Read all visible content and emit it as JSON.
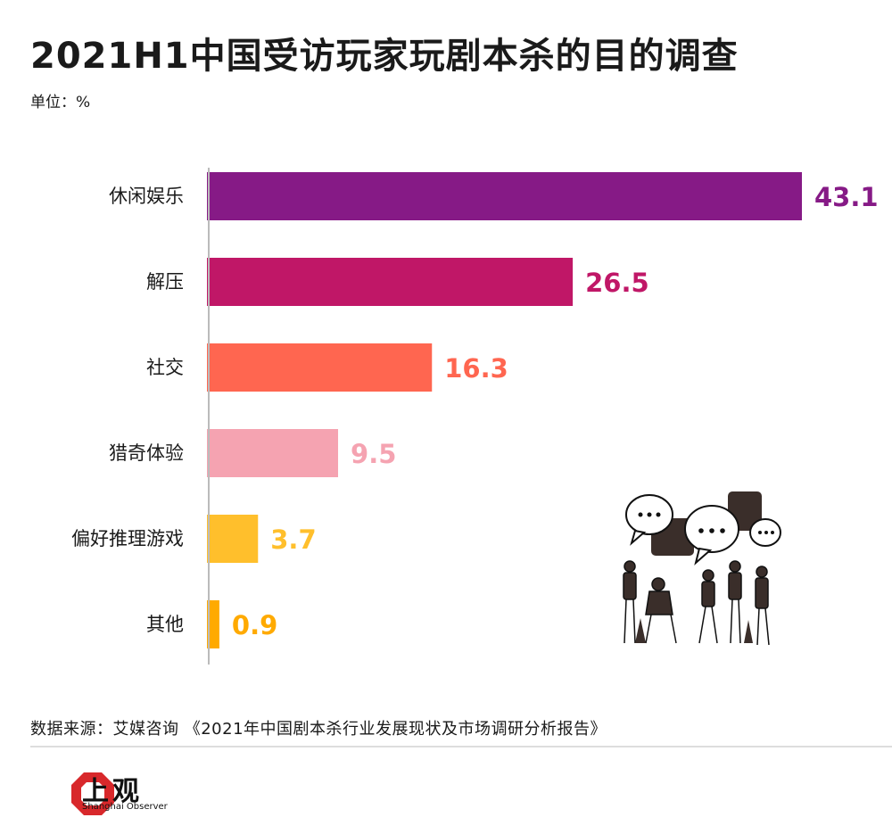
{
  "header": {
    "title": "2021H1中国受访玩家玩剧本杀的目的调查",
    "unit": "单位：%"
  },
  "chart_data": {
    "type": "bar",
    "orientation": "horizontal",
    "title": "2021H1中国受访玩家玩剧本杀的目的调查",
    "categories": [
      "休闲娱乐",
      "解压",
      "社交",
      "猎奇体验",
      "偏好推理游戏",
      "其他"
    ],
    "values": [
      43.1,
      26.5,
      16.3,
      9.5,
      3.7,
      0.9
    ],
    "value_labels": [
      "43.1",
      "26.5",
      "16.3",
      "9.5",
      "3.7",
      "0.9"
    ],
    "colors": [
      "#861a86",
      "#c01767",
      "#ff6650",
      "#f5a3b1",
      "#ffbf2c",
      "#ffaa00"
    ],
    "xlim": [
      0,
      43.1
    ],
    "grid": false,
    "legend": "none"
  },
  "footer": {
    "source": "数据来源：艾媒咨询 《2021年中国剧本杀行业发展现状及市场调研分析报告》",
    "logo_name": "上观",
    "logo_sub": "Shanghai Observer"
  },
  "icons": {
    "logo": "shanghai-observer-logo-icon",
    "illustration": "people-chatting-illustration-icon"
  }
}
